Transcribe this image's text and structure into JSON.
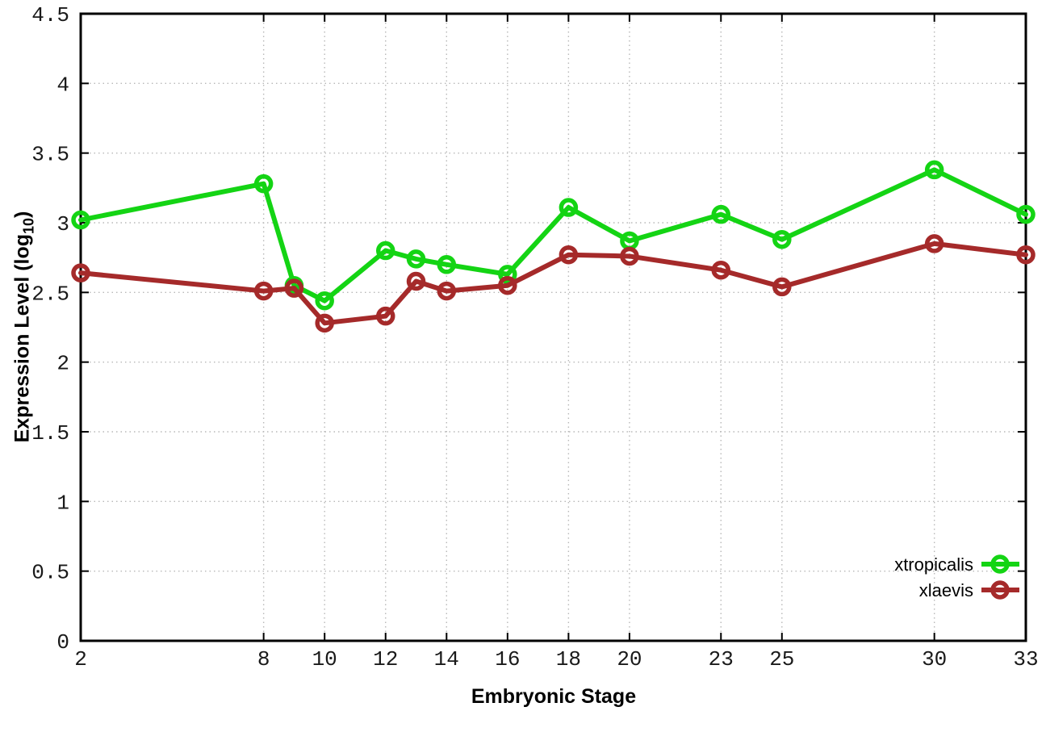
{
  "chart_data": {
    "type": "line",
    "title": "",
    "xlabel": "Embryonic Stage",
    "ylabel": "Expression Level (log10)",
    "ylabel_parts": {
      "prefix": "Expression Level (log",
      "sub": "10",
      "suffix": ")"
    },
    "xlim": [
      2,
      33
    ],
    "ylim": [
      0,
      4.5
    ],
    "grid": true,
    "grid_style": "dotted",
    "legend_position": "bottom-right",
    "marker": "open-circle",
    "x": [
      2,
      8,
      9,
      10,
      12,
      13,
      14,
      16,
      18,
      20,
      23,
      25,
      30,
      33
    ],
    "series": [
      {
        "name": "xtropicalis",
        "color": "#14d414",
        "values": [
          3.02,
          3.28,
          2.55,
          2.44,
          2.8,
          2.74,
          2.7,
          2.63,
          3.11,
          2.87,
          3.06,
          2.88,
          3.38,
          3.06
        ]
      },
      {
        "name": "xlaevis",
        "color": "#a52a2a",
        "values": [
          2.64,
          2.51,
          2.53,
          2.28,
          2.33,
          2.58,
          2.51,
          2.55,
          2.77,
          2.76,
          2.66,
          2.54,
          2.85,
          2.77
        ]
      }
    ],
    "xticks": {
      "values": [
        2,
        8,
        10,
        12,
        14,
        16,
        18,
        20,
        23,
        25,
        30,
        33
      ],
      "labels": [
        "2",
        "8",
        "10",
        "12",
        "14",
        "16",
        "18",
        "20",
        "23",
        "25",
        "30",
        "33"
      ]
    },
    "yticks": {
      "values": [
        0,
        0.5,
        1,
        1.5,
        2,
        2.5,
        3,
        3.5,
        4,
        4.5
      ],
      "labels": [
        "0",
        "0.5",
        "1",
        "1.5",
        "2",
        "2.5",
        "3",
        "3.5",
        "4",
        "4.5"
      ]
    }
  },
  "colors": {
    "grid": "#b8b8b8",
    "border": "#000000",
    "tick_text": "#1a1a1a",
    "background": "#ffffff"
  }
}
